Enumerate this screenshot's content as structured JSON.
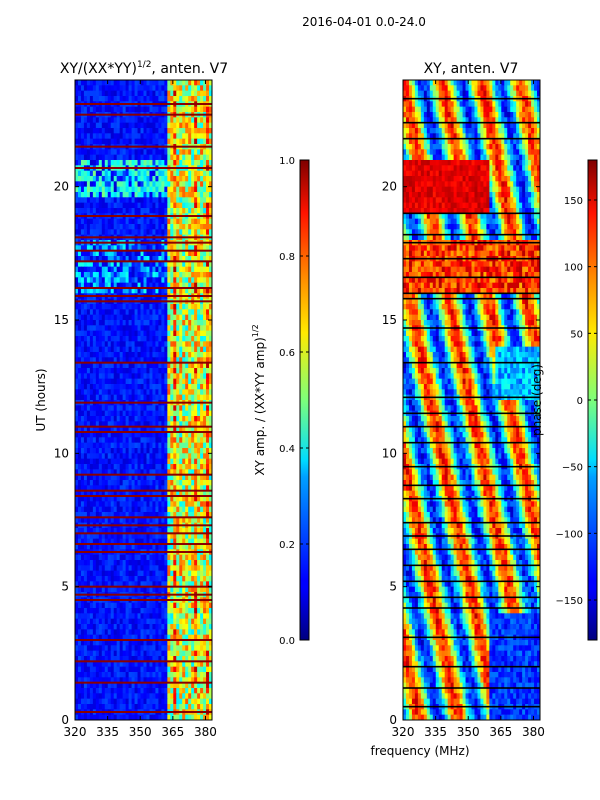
{
  "figure": {
    "suptitle": "2016-04-01 0.0-24.0",
    "xlabel_shared": "frequency (MHz)"
  },
  "chart_data": [
    {
      "type": "heatmap",
      "title_main": "XY/(XX*YY)",
      "title_exp": "1/2",
      "title_suffix": ", anten. V7",
      "xlabel": "",
      "ylabel": "UT (hours)",
      "xlim": [
        320,
        383
      ],
      "ylim": [
        0,
        24
      ],
      "x_ticks": [
        320,
        335,
        350,
        365,
        380
      ],
      "y_ticks": [
        0,
        5,
        10,
        15,
        20
      ],
      "colorbar": {
        "label_main": "XY amp. / (XX*YY amp)",
        "label_exp": "1/2",
        "range": [
          0.0,
          1.0
        ],
        "ticks": [
          "0.0",
          "0.2",
          "0.4",
          "0.6",
          "0.8",
          "1.0"
        ],
        "tick_values": [
          0.0,
          0.2,
          0.4,
          0.6,
          0.8,
          1.0
        ]
      },
      "colormap": "jet",
      "features": {
        "bright_band_start_mhz": 362,
        "flagged_rows_ut": [
          0.3,
          1.4,
          2.2,
          3.0,
          4.5,
          4.7,
          5.0,
          6.3,
          6.6,
          7.0,
          7.3,
          7.6,
          8.4,
          8.6,
          9.2,
          10.8,
          11.0,
          11.9,
          13.4,
          15.7,
          15.9,
          16.2,
          17.2,
          17.6,
          17.9,
          18.1,
          18.9,
          20.7,
          21.5,
          22.7,
          23.1
        ]
      }
    },
    {
      "type": "heatmap",
      "title": "XY, anten. V7",
      "xlabel": "frequency (MHz)",
      "ylabel": "",
      "xlim": [
        320,
        383
      ],
      "ylim": [
        0,
        24
      ],
      "x_ticks": [
        320,
        335,
        350,
        365,
        380
      ],
      "y_ticks": [
        0,
        5,
        10,
        15,
        20
      ],
      "colorbar": {
        "label": "phase (deg)",
        "range": [
          -180,
          180
        ],
        "ticks": [
          "150",
          "100",
          "50",
          "0",
          "−50",
          "−100",
          "−150"
        ],
        "tick_values": [
          150,
          100,
          50,
          0,
          -50,
          -100,
          -150
        ]
      },
      "colormap": "jet",
      "features": {
        "flagged_rows_ut": [
          0.5,
          1.2,
          2.0,
          3.1,
          4.2,
          4.6,
          5.2,
          5.8,
          6.4,
          6.9,
          7.4,
          8.3,
          8.8,
          9.5,
          10.4,
          11.0,
          11.5,
          12.1,
          13.4,
          14.7,
          15.8,
          16.0,
          16.6,
          17.3,
          17.9,
          18.2,
          19.0,
          21.8,
          22.4,
          23.3
        ]
      }
    }
  ]
}
